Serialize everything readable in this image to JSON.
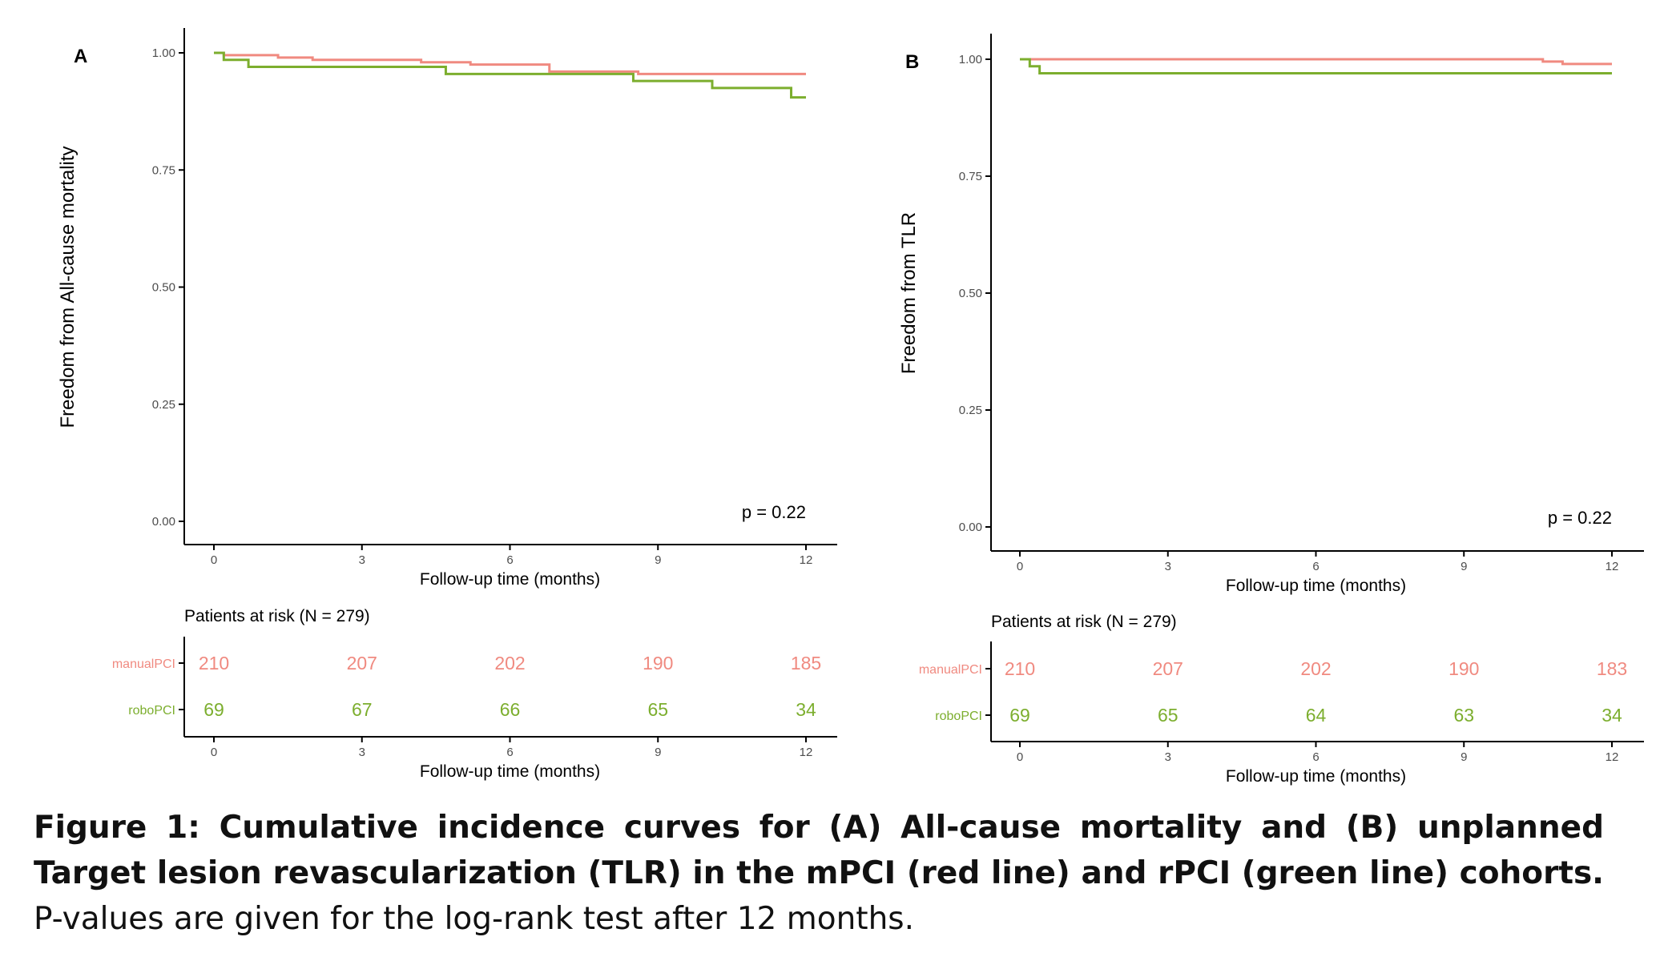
{
  "caption": {
    "bold": "Figure 1: Cumulative incidence curves for (A) All-cause mortality and (B) unplanned Target lesion revascularization (TLR) in the mPCI (red line) and rPCI (green line) cohorts.",
    "normal": " P-values are given for the log-rank test after 12 months."
  },
  "colors": {
    "manual": "#F08A80",
    "robo": "#7CAE2E",
    "axis": "#000000",
    "tick_text": "#4D4D4D"
  },
  "chart_data": [
    {
      "type": "line",
      "panel_label": "A",
      "ylabel": "Freedom from All-cause mortality",
      "xlabel": "Follow-up time (months)",
      "xlim": [
        0,
        12
      ],
      "ylim": [
        0,
        1
      ],
      "x_ticks": [
        0,
        3,
        6,
        9,
        12
      ],
      "y_ticks": [
        "0.00",
        "0.25",
        "0.50",
        "0.75",
        "1.00"
      ],
      "pvalue": "p = 0.22",
      "series": [
        {
          "name": "manualPCI",
          "x": [
            0,
            0.2,
            1.3,
            2.0,
            4.2,
            5.2,
            6.8,
            8.6,
            12
          ],
          "y": [
            1.0,
            0.995,
            0.99,
            0.985,
            0.98,
            0.975,
            0.96,
            0.955,
            0.955
          ]
        },
        {
          "name": "roboPCI",
          "x": [
            0,
            0.2,
            0.7,
            4.7,
            8.5,
            10.1,
            11.7,
            12
          ],
          "y": [
            1.0,
            0.985,
            0.97,
            0.955,
            0.94,
            0.925,
            0.905,
            0.905
          ]
        }
      ],
      "risk_table": {
        "title": "Patients at risk (N = 279)",
        "xlabel": "Follow-up time (months)",
        "x_ticks": [
          0,
          3,
          6,
          9,
          12
        ],
        "rows": [
          {
            "name": "manualPCI",
            "values": [
              "210",
              "207",
              "202",
              "190",
              "185"
            ]
          },
          {
            "name": "roboPCI",
            "values": [
              "69",
              "67",
              "66",
              "65",
              "34"
            ]
          }
        ]
      }
    },
    {
      "type": "line",
      "panel_label": "B",
      "ylabel": "Freedom from TLR",
      "xlabel": "Follow-up time (months)",
      "xlim": [
        0,
        12
      ],
      "ylim": [
        0,
        1
      ],
      "x_ticks": [
        0,
        3,
        6,
        9,
        12
      ],
      "y_ticks": [
        "0.00",
        "0.25",
        "0.50",
        "0.75",
        "1.00"
      ],
      "pvalue": "p = 0.22",
      "series": [
        {
          "name": "manualPCI",
          "x": [
            0,
            10.6,
            11.0,
            12
          ],
          "y": [
            1.0,
            0.995,
            0.99,
            0.99
          ]
        },
        {
          "name": "roboPCI",
          "x": [
            0,
            0.2,
            0.4,
            12
          ],
          "y": [
            1.0,
            0.985,
            0.97,
            0.97
          ]
        }
      ],
      "risk_table": {
        "title": "Patients at risk (N = 279)",
        "xlabel": "Follow-up time (months)",
        "x_ticks": [
          0,
          3,
          6,
          9,
          12
        ],
        "rows": [
          {
            "name": "manualPCI",
            "values": [
              "210",
              "207",
              "202",
              "190",
              "183"
            ]
          },
          {
            "name": "roboPCI",
            "values": [
              "69",
              "65",
              "64",
              "63",
              "34"
            ]
          }
        ]
      }
    }
  ]
}
